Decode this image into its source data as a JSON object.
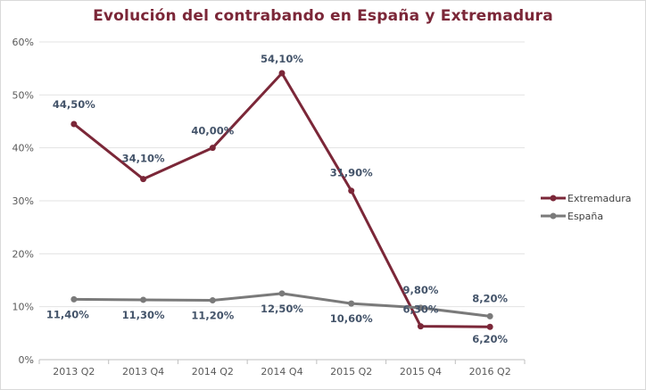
{
  "chart_data": {
    "type": "line",
    "title": "Evolución  del contrabando en España y Extremadura",
    "categories": [
      "2013 Q2",
      "2013 Q4",
      "2014 Q2",
      "2014 Q4",
      "2015 Q2",
      "2015 Q4",
      "2016 Q2"
    ],
    "ylim": [
      0,
      60
    ],
    "yticks": [
      0,
      10,
      20,
      30,
      40,
      50,
      60
    ],
    "ytick_labels": [
      "0%",
      "10%",
      "20%",
      "30%",
      "40%",
      "50%",
      "60%"
    ],
    "grid": true,
    "legend_position": "right",
    "series": [
      {
        "name": "Extremadura",
        "color": "#7b2738",
        "values": [
          44.5,
          34.1,
          40.0,
          54.1,
          31.9,
          6.3,
          6.2
        ],
        "labels": [
          "44,50%",
          "34,10%",
          "40,00%",
          "54,10%",
          "31,90%",
          "6,30%",
          "6,20%"
        ]
      },
      {
        "name": "España",
        "color": "#7a7a7a",
        "values": [
          11.4,
          11.3,
          11.2,
          12.5,
          10.6,
          9.8,
          8.2
        ],
        "labels": [
          "11,40%",
          "11,30%",
          "11,20%",
          "12,50%",
          "10,60%",
          "9,80%",
          "8,20%"
        ]
      }
    ]
  }
}
